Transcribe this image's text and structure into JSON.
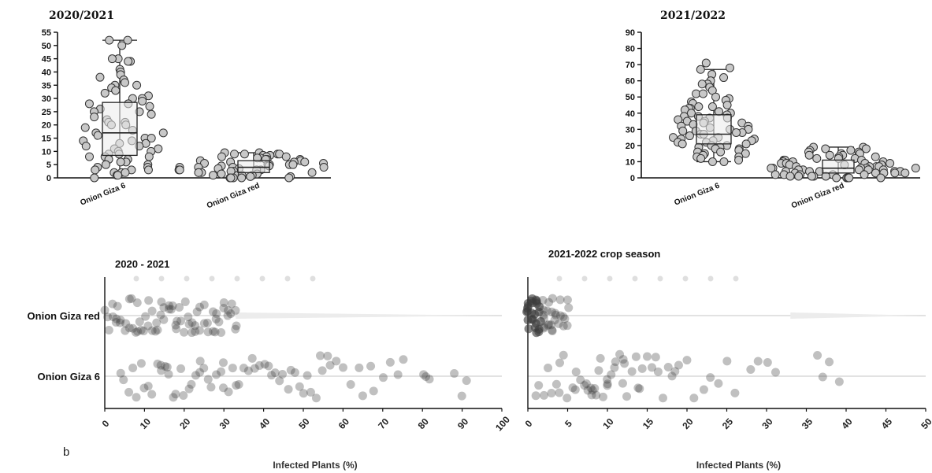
{
  "chart_data": [
    {
      "type": "box",
      "title": "2020/2021",
      "categories": [
        "Onion Giza 6",
        "Onion Giza red"
      ],
      "ylim": [
        0,
        55
      ],
      "yticks": [
        0,
        5,
        10,
        15,
        20,
        25,
        30,
        35,
        40,
        45,
        50,
        55
      ],
      "boxes": [
        {
          "min": 0,
          "q1": 8.5,
          "median": 17,
          "q3": 28.5,
          "max": 52,
          "points": [
            52,
            52,
            50,
            45,
            45,
            44,
            44,
            41,
            40,
            39,
            38,
            37,
            36,
            35,
            35,
            34,
            33,
            32,
            31,
            30,
            30,
            29,
            28,
            28,
            27,
            26,
            25,
            25,
            24,
            23,
            22,
            21,
            21,
            20,
            20,
            19,
            18,
            17,
            17,
            16,
            15,
            15,
            14,
            14,
            13,
            13,
            12,
            12,
            11,
            11,
            10,
            10,
            9,
            9,
            8,
            8,
            8,
            7,
            7,
            6,
            6,
            5,
            5,
            4,
            4,
            3,
            3,
            3,
            2,
            2,
            2,
            1,
            1,
            0
          ]
        },
        {
          "min": 0,
          "q1": 2,
          "median": 4,
          "q3": 6.5,
          "max": 9.5,
          "points": [
            9.5,
            9.5,
            9,
            9,
            9,
            9,
            8.5,
            8.5,
            8,
            8,
            8,
            7.5,
            7.5,
            7,
            7,
            7,
            6.5,
            6.5,
            6,
            6,
            6,
            5.5,
            5.5,
            5,
            5,
            5,
            5,
            4.5,
            4.5,
            4,
            4,
            4,
            4,
            3.5,
            3.5,
            3,
            3,
            3,
            3,
            2.5,
            2.5,
            2,
            2,
            2,
            2,
            1.5,
            1.5,
            1,
            1,
            1,
            1,
            0.5,
            0.5,
            0,
            0,
            0,
            0,
            0
          ]
        }
      ]
    },
    {
      "type": "box",
      "title": "2021/2022",
      "categories": [
        "Onion Giza 6",
        "Onion Giza red"
      ],
      "ylim": [
        0,
        90
      ],
      "yticks": [
        0,
        10,
        20,
        30,
        40,
        50,
        60,
        70,
        80,
        90
      ],
      "boxes": [
        {
          "min": 10,
          "q1": 21,
          "median": 27,
          "q3": 39,
          "max": 67,
          "points": [
            71,
            68,
            67,
            64,
            62,
            60,
            58,
            58,
            56,
            54,
            52,
            52,
            50,
            49,
            48,
            47,
            46,
            45,
            44,
            44,
            43,
            43,
            42,
            41,
            40,
            40,
            39,
            38,
            38,
            37,
            37,
            36,
            35,
            35,
            34,
            34,
            33,
            32,
            32,
            31,
            30,
            30,
            29,
            29,
            28,
            28,
            27,
            27,
            26,
            25,
            25,
            24,
            24,
            23,
            23,
            22,
            22,
            21,
            21,
            20,
            20,
            19,
            19,
            18,
            18,
            17,
            16,
            16,
            15,
            15,
            14,
            13,
            13,
            12,
            11,
            10,
            10
          ]
        },
        {
          "min": 0,
          "q1": 3,
          "median": 6,
          "q3": 11,
          "max": 19,
          "points": [
            19,
            19,
            18,
            18,
            17,
            17,
            16,
            16,
            15,
            15,
            14,
            14,
            14,
            13,
            13,
            12,
            12,
            12,
            11,
            11,
            11,
            10,
            10,
            10,
            9,
            9,
            9,
            9,
            8,
            8,
            8,
            8,
            7,
            7,
            7,
            7,
            6,
            6,
            6,
            6,
            6,
            5,
            5,
            5,
            5,
            5,
            4,
            4,
            4,
            4,
            4,
            3,
            3,
            3,
            3,
            3,
            2,
            2,
            2,
            2,
            2,
            1,
            1,
            1,
            1,
            1,
            0,
            0,
            0,
            0,
            0
          ]
        }
      ]
    },
    {
      "type": "scatter",
      "title": "2020 - 2021",
      "xlabel": "Infected Plants (%)",
      "categories": [
        "Onion Giza red",
        "Onion Giza 6"
      ],
      "xlim": [
        0,
        100
      ],
      "xticks": [
        0,
        10,
        20,
        30,
        40,
        50,
        60,
        70,
        80,
        90,
        100
      ],
      "series": [
        {
          "category": "Onion Giza red",
          "x": [
            0,
            1,
            1,
            2,
            2,
            3,
            3,
            4,
            4,
            5,
            5,
            6,
            6,
            7,
            7,
            8,
            8,
            9,
            9,
            10,
            10,
            11,
            11,
            12,
            12,
            13,
            13,
            14,
            14,
            15,
            15,
            16,
            16,
            17,
            17,
            18,
            18,
            19,
            19,
            20,
            20,
            21,
            21,
            22,
            22,
            23,
            23,
            24,
            24,
            25,
            25,
            26,
            26,
            27,
            27,
            28,
            28,
            29,
            29,
            30,
            30,
            31,
            31,
            32,
            32,
            33,
            33,
            3,
            8,
            13,
            18,
            23,
            28,
            33
          ]
        },
        {
          "category": "Onion Giza 6",
          "x": [
            4,
            5,
            6,
            7,
            8,
            9,
            10,
            11,
            12,
            13,
            14,
            14,
            15,
            16,
            16,
            17,
            18,
            19,
            20,
            21,
            22,
            23,
            24,
            24,
            25,
            26,
            27,
            28,
            29,
            30,
            30,
            31,
            32,
            33,
            34,
            35,
            36,
            37,
            38,
            39,
            40,
            41,
            42,
            43,
            44,
            45,
            46,
            47,
            48,
            49,
            50,
            51,
            52,
            53,
            54,
            55,
            56,
            57,
            58,
            60,
            62,
            64,
            65,
            67,
            68,
            70,
            72,
            74,
            75,
            80,
            81,
            82,
            88,
            90,
            91
          ]
        }
      ]
    },
    {
      "type": "scatter",
      "title": "2021-2022 crop season",
      "xlabel": "Infected Plants (%)",
      "categories": [
        "Onion Giza red",
        "Onion Giza 6"
      ],
      "xlim": [
        0,
        50
      ],
      "xticks": [
        0,
        5,
        10,
        15,
        20,
        25,
        30,
        35,
        40,
        45,
        50
      ],
      "series": [
        {
          "category": "Onion Giza red",
          "x": [
            0,
            0,
            0,
            0,
            0,
            0,
            0,
            0.5,
            0.5,
            0.5,
            0.5,
            0.5,
            1,
            1,
            1,
            1,
            1,
            1,
            1.5,
            1.5,
            1.5,
            1.5,
            2,
            2,
            2,
            2,
            2,
            2.5,
            2.5,
            2.5,
            3,
            3,
            3,
            3,
            3.5,
            3.5,
            4,
            4,
            4,
            4.5,
            4.5,
            5,
            5,
            5,
            0.5,
            1.5,
            2.5,
            3.5,
            4.5,
            1,
            2,
            3
          ]
        },
        {
          "category": "Onion Giza 6",
          "x": [
            1,
            1.5,
            2,
            2.5,
            3,
            3.5,
            4,
            4.5,
            5,
            5.5,
            6,
            6.5,
            7,
            7.5,
            7.5,
            8,
            8,
            8.5,
            8.5,
            9,
            9,
            9.5,
            10,
            10,
            10.5,
            11,
            11,
            11.5,
            12,
            12,
            12.5,
            13,
            13.5,
            14,
            14.5,
            15,
            15.5,
            16,
            16.5,
            17,
            17.5,
            18,
            18.5,
            19,
            20,
            21,
            22,
            23,
            24,
            25,
            26,
            28,
            29,
            30,
            31,
            36.5,
            37,
            38,
            39,
            4,
            6,
            8,
            10,
            12,
            14
          ]
        }
      ]
    }
  ],
  "panel_letter": "b"
}
